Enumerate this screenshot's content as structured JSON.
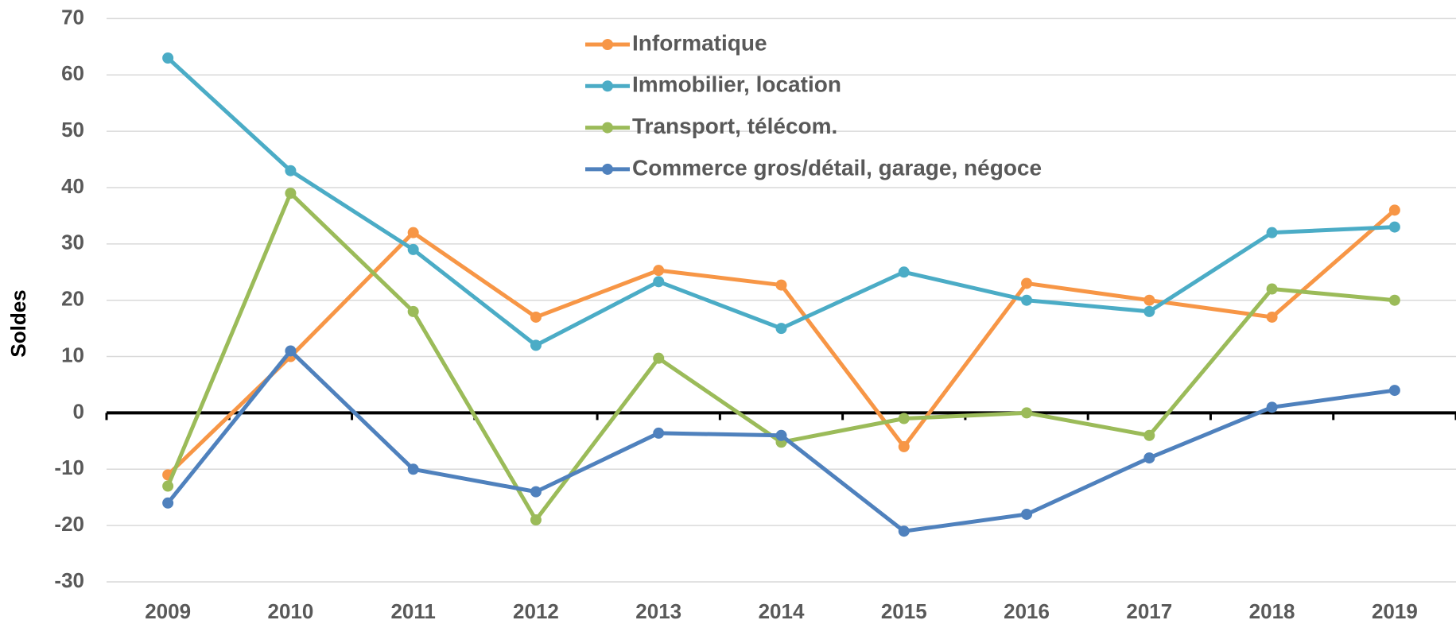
{
  "chart_data": {
    "type": "line",
    "y_label": "Soldes",
    "categories": [
      "2009",
      "2010",
      "2011",
      "2012",
      "2013",
      "2014",
      "2015",
      "2016",
      "2017",
      "2018",
      "2019"
    ],
    "series": [
      {
        "name": "Informatique",
        "color": "#f79646",
        "values": [
          -11,
          10,
          32,
          17,
          25.3,
          22.7,
          -6,
          23,
          20,
          17,
          36
        ]
      },
      {
        "name": "Immobilier, location",
        "color": "#4bacc6",
        "values": [
          63,
          43,
          29,
          12,
          23.3,
          15,
          25,
          20,
          18,
          32,
          33
        ]
      },
      {
        "name": "Transport, télécom.",
        "color": "#9bbb59",
        "values": [
          -13,
          39,
          18,
          -19,
          9.7,
          -5.2,
          -1,
          0,
          -4,
          22,
          20
        ]
      },
      {
        "name": "Commerce gros/détail, garage, négoce",
        "color": "#4f81bd",
        "values": [
          -16,
          11,
          -10,
          -14,
          -3.6,
          -4,
          -21,
          -18,
          -8,
          1,
          4
        ]
      }
    ],
    "ylim": [
      -30,
      70
    ],
    "yticks": [
      70,
      60,
      50,
      40,
      30,
      20,
      10,
      0,
      -10,
      -20,
      -30
    ],
    "grid": true
  }
}
